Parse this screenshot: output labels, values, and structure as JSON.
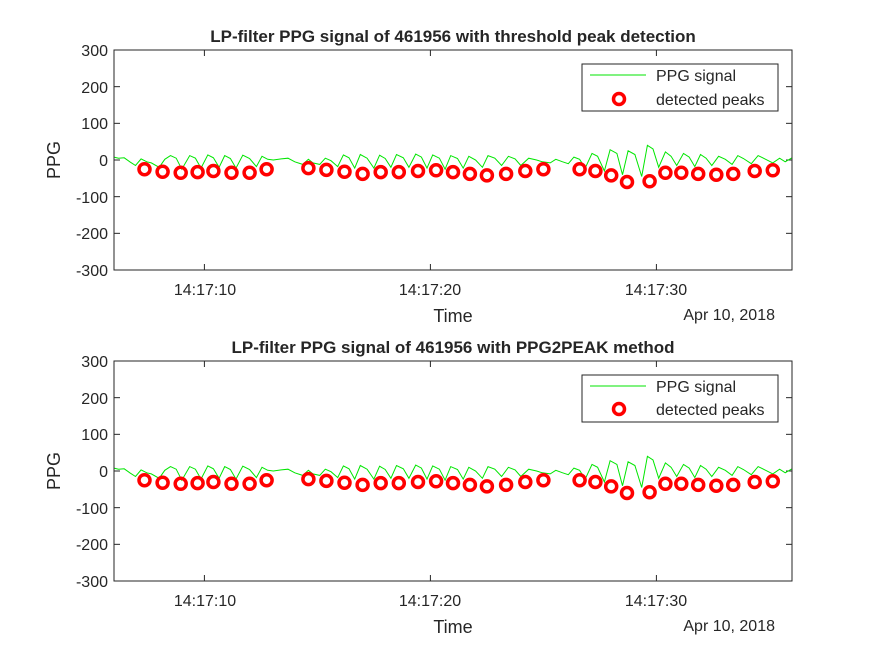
{
  "figure": {
    "background": "#ffffff",
    "signal_color": "#00e600",
    "peak_color": "#ff0000",
    "axis_color": "#262626"
  },
  "chart_data": [
    {
      "type": "line",
      "title": "LP-filter PPG signal of 461956 with threshold peak detection",
      "xlabel": "Time",
      "ylabel": "PPG",
      "date_label": "Apr 10, 2018",
      "x_ticks": [
        "14:17:10",
        "14:17:20",
        "14:17:30"
      ],
      "x_tick_seconds": [
        10,
        20,
        30
      ],
      "xlim_seconds": [
        6.0,
        36.0
      ],
      "ylim": [
        -300,
        300
      ],
      "y_ticks": [
        300,
        200,
        100,
        0,
        -100,
        -200,
        -300
      ],
      "legend": {
        "position": "top-right",
        "entries": [
          "PPG signal",
          "detected peaks"
        ]
      },
      "series": [
        {
          "name": "PPG signal",
          "kind": "line",
          "points": [
            [
              6.0,
              8
            ],
            [
              6.2,
              5
            ],
            [
              6.45,
              6
            ],
            [
              6.7,
              -5
            ],
            [
              6.95,
              -15
            ],
            [
              7.2,
              3
            ],
            [
              7.45,
              -5
            ],
            [
              7.65,
              -8
            ],
            [
              8.0,
              -20
            ],
            [
              8.25,
              2
            ],
            [
              8.5,
              12
            ],
            [
              8.75,
              5
            ],
            [
              9.0,
              -25
            ],
            [
              9.35,
              12
            ],
            [
              9.6,
              5
            ],
            [
              9.85,
              -22
            ],
            [
              10.15,
              14
            ],
            [
              10.4,
              6
            ],
            [
              10.65,
              -20
            ],
            [
              10.9,
              12
            ],
            [
              11.15,
              4
            ],
            [
              11.4,
              -22
            ],
            [
              11.7,
              13
            ],
            [
              12.0,
              4
            ],
            [
              12.3,
              -18
            ],
            [
              12.55,
              10
            ],
            [
              12.8,
              2
            ],
            [
              13.05,
              0
            ],
            [
              13.4,
              3
            ],
            [
              13.7,
              5
            ],
            [
              14.0,
              -5
            ],
            [
              14.35,
              -12
            ],
            [
              14.6,
              2
            ],
            [
              14.8,
              -8
            ],
            [
              15.1,
              -12
            ],
            [
              15.35,
              5
            ],
            [
              15.6,
              -2
            ],
            [
              15.9,
              -18
            ],
            [
              16.15,
              14
            ],
            [
              16.4,
              6
            ],
            [
              16.65,
              -22
            ],
            [
              16.9,
              15
            ],
            [
              17.2,
              5
            ],
            [
              17.5,
              -22
            ],
            [
              17.75,
              13
            ],
            [
              18.0,
              4
            ],
            [
              18.25,
              -20
            ],
            [
              18.5,
              15
            ],
            [
              18.8,
              6
            ],
            [
              19.05,
              -20
            ],
            [
              19.35,
              16
            ],
            [
              19.6,
              8
            ],
            [
              19.85,
              -22
            ],
            [
              20.1,
              14
            ],
            [
              20.4,
              5
            ],
            [
              20.65,
              -25
            ],
            [
              20.9,
              12
            ],
            [
              21.2,
              4
            ],
            [
              21.45,
              -22
            ],
            [
              21.7,
              10
            ],
            [
              22.0,
              0
            ],
            [
              22.3,
              -20
            ],
            [
              22.55,
              12
            ],
            [
              22.85,
              5
            ],
            [
              23.15,
              -15
            ],
            [
              23.45,
              10
            ],
            [
              23.75,
              3
            ],
            [
              24.0,
              -15
            ],
            [
              24.35,
              5
            ],
            [
              24.7,
              0
            ],
            [
              24.95,
              -5
            ],
            [
              25.3,
              -8
            ],
            [
              25.55,
              2
            ],
            [
              25.85,
              -5
            ],
            [
              26.1,
              -10
            ],
            [
              26.35,
              8
            ],
            [
              26.6,
              2
            ],
            [
              26.85,
              -22
            ],
            [
              27.15,
              18
            ],
            [
              27.4,
              10
            ],
            [
              27.7,
              -30
            ],
            [
              27.95,
              28
            ],
            [
              28.25,
              18
            ],
            [
              28.5,
              -40
            ],
            [
              28.75,
              25
            ],
            [
              29.05,
              15
            ],
            [
              29.35,
              -45
            ],
            [
              29.6,
              40
            ],
            [
              29.85,
              30
            ],
            [
              30.1,
              -20
            ],
            [
              30.4,
              22
            ],
            [
              30.65,
              10
            ],
            [
              30.9,
              -15
            ],
            [
              31.2,
              18
            ],
            [
              31.45,
              8
            ],
            [
              31.7,
              -18
            ],
            [
              31.95,
              15
            ],
            [
              32.2,
              5
            ],
            [
              32.45,
              -15
            ],
            [
              32.75,
              10
            ],
            [
              33.05,
              2
            ],
            [
              33.35,
              -12
            ],
            [
              33.6,
              12
            ],
            [
              33.85,
              4
            ],
            [
              34.2,
              -10
            ],
            [
              34.5,
              12
            ],
            [
              34.8,
              3
            ],
            [
              35.15,
              -8
            ],
            [
              35.45,
              5
            ],
            [
              35.7,
              -5
            ],
            [
              36.0,
              6
            ]
          ]
        },
        {
          "name": "detected peaks",
          "kind": "markers",
          "x": [
            7.35,
            8.15,
            8.95,
            9.7,
            10.4,
            11.2,
            12.0,
            12.75,
            14.6,
            15.4,
            16.2,
            17.0,
            17.8,
            18.6,
            19.45,
            20.25,
            21.0,
            21.75,
            22.5,
            23.35,
            24.2,
            25.0,
            26.6,
            27.3,
            28.0,
            28.7,
            29.7,
            30.4,
            31.1,
            31.85,
            32.65,
            33.4,
            34.35,
            35.15
          ],
          "y": [
            -25,
            -32,
            -35,
            -33,
            -30,
            -35,
            -35,
            -25,
            -22,
            -27,
            -32,
            -38,
            -33,
            -33,
            -30,
            -28,
            -33,
            -38,
            -42,
            -38,
            -30,
            -25,
            -25,
            -30,
            -42,
            -60,
            -58,
            -35,
            -35,
            -38,
            -40,
            -38,
            -30,
            -28
          ]
        }
      ]
    },
    {
      "type": "line",
      "title": "LP-filter PPG signal of 461956 with PPG2PEAK method",
      "xlabel": "Time",
      "ylabel": "PPG",
      "date_label": "Apr 10, 2018",
      "x_ticks": [
        "14:17:10",
        "14:17:20",
        "14:17:30"
      ],
      "x_tick_seconds": [
        10,
        20,
        30
      ],
      "xlim_seconds": [
        6.0,
        36.0
      ],
      "ylim": [
        -300,
        300
      ],
      "y_ticks": [
        300,
        200,
        100,
        0,
        -100,
        -200,
        -300
      ],
      "legend": {
        "position": "top-right",
        "entries": [
          "PPG signal",
          "detected peaks"
        ]
      },
      "series": [
        {
          "name": "PPG signal",
          "kind": "line",
          "points": [
            [
              6.0,
              8
            ],
            [
              6.2,
              5
            ],
            [
              6.45,
              6
            ],
            [
              6.7,
              -5
            ],
            [
              6.95,
              -15
            ],
            [
              7.2,
              3
            ],
            [
              7.45,
              -5
            ],
            [
              7.65,
              -8
            ],
            [
              8.0,
              -20
            ],
            [
              8.25,
              2
            ],
            [
              8.5,
              12
            ],
            [
              8.75,
              5
            ],
            [
              9.0,
              -25
            ],
            [
              9.35,
              12
            ],
            [
              9.6,
              5
            ],
            [
              9.85,
              -22
            ],
            [
              10.15,
              14
            ],
            [
              10.4,
              6
            ],
            [
              10.65,
              -20
            ],
            [
              10.9,
              12
            ],
            [
              11.15,
              4
            ],
            [
              11.4,
              -22
            ],
            [
              11.7,
              13
            ],
            [
              12.0,
              4
            ],
            [
              12.3,
              -18
            ],
            [
              12.55,
              10
            ],
            [
              12.8,
              2
            ],
            [
              13.05,
              0
            ],
            [
              13.4,
              3
            ],
            [
              13.7,
              5
            ],
            [
              14.0,
              -5
            ],
            [
              14.35,
              -12
            ],
            [
              14.6,
              2
            ],
            [
              14.8,
              -8
            ],
            [
              15.1,
              -12
            ],
            [
              15.35,
              5
            ],
            [
              15.6,
              -2
            ],
            [
              15.9,
              -18
            ],
            [
              16.15,
              14
            ],
            [
              16.4,
              6
            ],
            [
              16.65,
              -22
            ],
            [
              16.9,
              15
            ],
            [
              17.2,
              5
            ],
            [
              17.5,
              -22
            ],
            [
              17.75,
              13
            ],
            [
              18.0,
              4
            ],
            [
              18.25,
              -20
            ],
            [
              18.5,
              15
            ],
            [
              18.8,
              6
            ],
            [
              19.05,
              -20
            ],
            [
              19.35,
              16
            ],
            [
              19.6,
              8
            ],
            [
              19.85,
              -22
            ],
            [
              20.1,
              14
            ],
            [
              20.4,
              5
            ],
            [
              20.65,
              -25
            ],
            [
              20.9,
              12
            ],
            [
              21.2,
              4
            ],
            [
              21.45,
              -22
            ],
            [
              21.7,
              10
            ],
            [
              22.0,
              0
            ],
            [
              22.3,
              -20
            ],
            [
              22.55,
              12
            ],
            [
              22.85,
              5
            ],
            [
              23.15,
              -15
            ],
            [
              23.45,
              10
            ],
            [
              23.75,
              3
            ],
            [
              24.0,
              -15
            ],
            [
              24.35,
              5
            ],
            [
              24.7,
              0
            ],
            [
              24.95,
              -5
            ],
            [
              25.3,
              -8
            ],
            [
              25.55,
              2
            ],
            [
              25.85,
              -5
            ],
            [
              26.1,
              -10
            ],
            [
              26.35,
              8
            ],
            [
              26.6,
              2
            ],
            [
              26.85,
              -22
            ],
            [
              27.15,
              18
            ],
            [
              27.4,
              10
            ],
            [
              27.7,
              -30
            ],
            [
              27.95,
              28
            ],
            [
              28.25,
              18
            ],
            [
              28.5,
              -40
            ],
            [
              28.75,
              25
            ],
            [
              29.05,
              15
            ],
            [
              29.35,
              -45
            ],
            [
              29.6,
              40
            ],
            [
              29.85,
              30
            ],
            [
              30.1,
              -20
            ],
            [
              30.4,
              22
            ],
            [
              30.65,
              10
            ],
            [
              30.9,
              -15
            ],
            [
              31.2,
              18
            ],
            [
              31.45,
              8
            ],
            [
              31.7,
              -18
            ],
            [
              31.95,
              15
            ],
            [
              32.2,
              5
            ],
            [
              32.45,
              -15
            ],
            [
              32.75,
              10
            ],
            [
              33.05,
              2
            ],
            [
              33.35,
              -12
            ],
            [
              33.6,
              12
            ],
            [
              33.85,
              4
            ],
            [
              34.2,
              -10
            ],
            [
              34.5,
              12
            ],
            [
              34.8,
              3
            ],
            [
              35.15,
              -8
            ],
            [
              35.45,
              5
            ],
            [
              35.7,
              -5
            ],
            [
              36.0,
              6
            ]
          ]
        },
        {
          "name": "detected peaks",
          "kind": "markers",
          "x": [
            7.35,
            8.15,
            8.95,
            9.7,
            10.4,
            11.2,
            12.0,
            12.75,
            14.6,
            15.4,
            16.2,
            17.0,
            17.8,
            18.6,
            19.45,
            20.25,
            21.0,
            21.75,
            22.5,
            23.35,
            24.2,
            25.0,
            26.6,
            27.3,
            28.0,
            28.7,
            29.7,
            30.4,
            31.1,
            31.85,
            32.65,
            33.4,
            34.35,
            35.15
          ],
          "y": [
            -25,
            -32,
            -35,
            -33,
            -30,
            -35,
            -35,
            -25,
            -22,
            -27,
            -32,
            -38,
            -33,
            -33,
            -30,
            -28,
            -33,
            -38,
            -42,
            -38,
            -30,
            -25,
            -25,
            -30,
            -42,
            -60,
            -58,
            -35,
            -35,
            -38,
            -40,
            -38,
            -30,
            -28
          ]
        }
      ]
    }
  ]
}
